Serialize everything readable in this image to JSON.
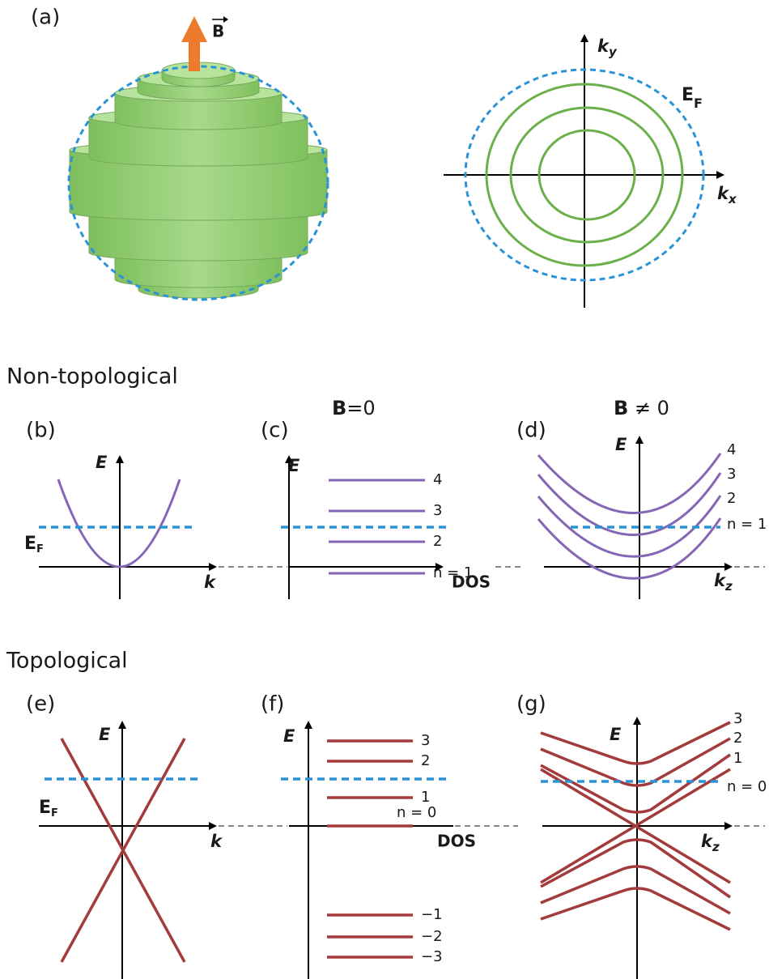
{
  "panel_a": {
    "label": "(a)",
    "field": "B",
    "ky": {
      "main": "k",
      "sub": "y"
    },
    "kx": {
      "main": "k",
      "sub": "x"
    },
    "fermi": {
      "main": "E",
      "sub": "F"
    }
  },
  "sections": [
    "Non-topological",
    "Topological"
  ],
  "panel_b": {
    "label": "(b)",
    "y_axis": "E",
    "x_axis": "k",
    "fermi": {
      "main": "E",
      "sub": "F"
    }
  },
  "panel_c": {
    "label": "(c)",
    "heading": {
      "bold": "B",
      "rest": "=0"
    },
    "y_axis": "E",
    "x_axis": "DOS",
    "levels": [
      "n = 1",
      "2",
      "3",
      "4"
    ]
  },
  "panel_d": {
    "label": "(d)",
    "heading": {
      "bold": "B",
      "rest": " ≠ 0"
    },
    "y_axis": "E",
    "x_axis": {
      "main": "k",
      "sub": "z"
    },
    "levels": [
      "n = 1",
      "2",
      "3",
      "4"
    ]
  },
  "panel_e": {
    "label": "(e)",
    "y_axis": "E",
    "x_axis": "k",
    "fermi": {
      "main": "E",
      "sub": "F"
    }
  },
  "panel_f": {
    "label": "(f)",
    "y_axis": "E",
    "x_axis": "DOS",
    "levels": [
      "−3",
      "−2",
      "−1",
      "n = 0",
      "1",
      "2",
      "3"
    ]
  },
  "panel_g": {
    "label": "(g)",
    "y_axis": "E",
    "x_axis": {
      "main": "k",
      "sub": "z"
    },
    "levels": [
      "n = 0",
      "1",
      "2",
      "3"
    ]
  }
}
